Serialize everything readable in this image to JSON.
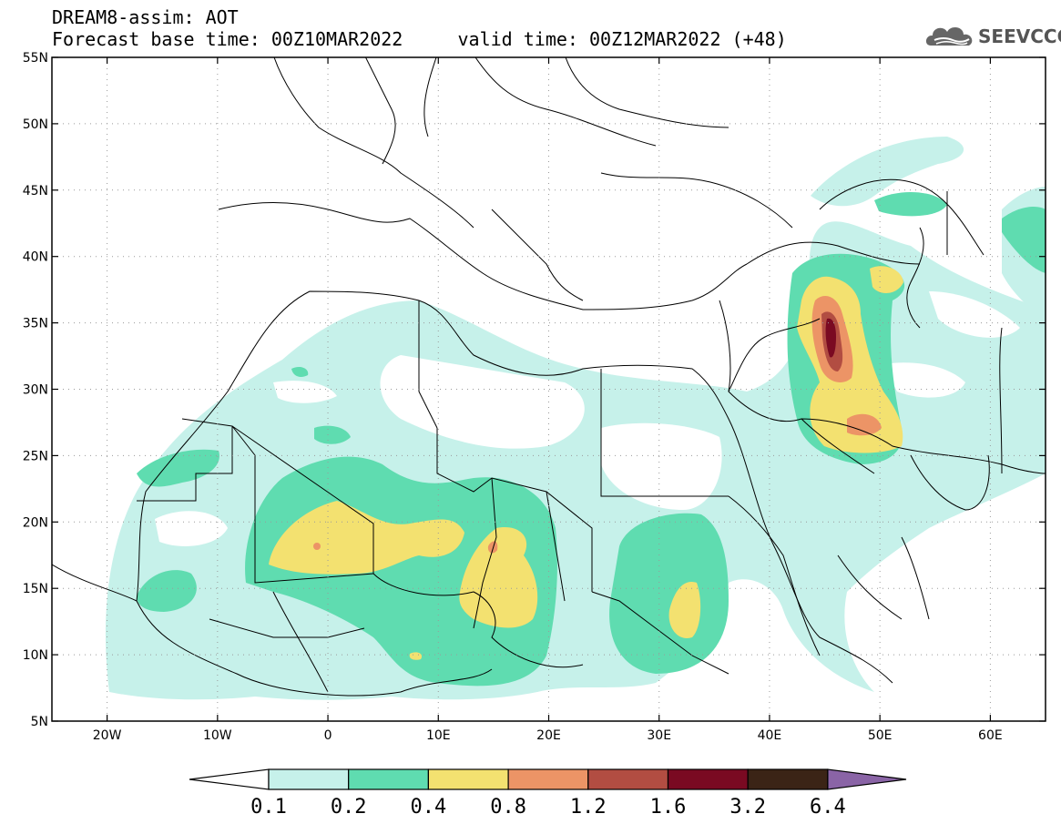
{
  "header": {
    "line1": "DREAM8-assim: AOT",
    "line2": "Forecast base time: 00Z10MAR2022     valid time: 00Z12MAR2022 (+48)"
  },
  "logo": {
    "text": "SEEVCCC",
    "icon": "cloud-logo-icon",
    "color": "#555555"
  },
  "map": {
    "lon_range": [
      -25,
      65
    ],
    "lat_range": [
      5,
      55
    ],
    "lat_ticks": [
      {
        "value": 55,
        "label": "55N"
      },
      {
        "value": 50,
        "label": "50N"
      },
      {
        "value": 45,
        "label": "45N"
      },
      {
        "value": 40,
        "label": "40N"
      },
      {
        "value": 35,
        "label": "35N"
      },
      {
        "value": 30,
        "label": "30N"
      },
      {
        "value": 25,
        "label": "25N"
      },
      {
        "value": 20,
        "label": "20N"
      },
      {
        "value": 15,
        "label": "15N"
      },
      {
        "value": 10,
        "label": "10N"
      },
      {
        "value": 5,
        "label": "5N"
      }
    ],
    "lon_ticks": [
      {
        "value": -20,
        "label": "20W"
      },
      {
        "value": -10,
        "label": "10W"
      },
      {
        "value": 0,
        "label": "0"
      },
      {
        "value": 10,
        "label": "10E"
      },
      {
        "value": 20,
        "label": "20E"
      },
      {
        "value": 30,
        "label": "30E"
      },
      {
        "value": 40,
        "label": "40E"
      },
      {
        "value": 50,
        "label": "50E"
      },
      {
        "value": 60,
        "label": "60E"
      }
    ],
    "grid": "dotted"
  },
  "colorbar": {
    "labels": [
      "0.1",
      "0.2",
      "0.4",
      "0.8",
      "1.2",
      "1.6",
      "3.2",
      "6.4"
    ],
    "colors": [
      "#c6f1ea",
      "#5fdcb0",
      "#f3e170",
      "#ec9466",
      "#b24d42",
      "#7a0a22",
      "#3b2416"
    ],
    "under_color": "#ffffff",
    "over_color": "#8a64a6"
  },
  "colors": {
    "level1": "#c6f1ea",
    "level2": "#5fdcb0",
    "level3": "#f3e170",
    "level4": "#ec9466",
    "level5": "#b24d42",
    "level6": "#7a0a22"
  }
}
